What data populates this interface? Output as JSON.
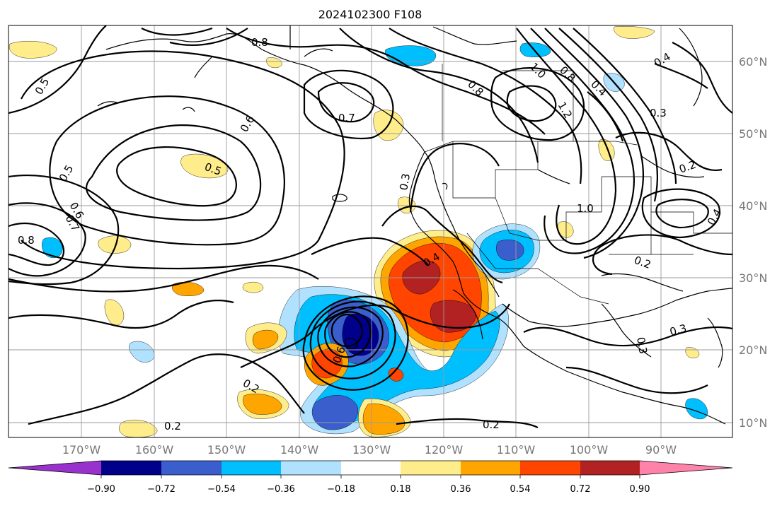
{
  "title": "2024102300 F108",
  "colors": {
    "neg_090": "#9932cc",
    "neg_072": "#00008b",
    "neg_054": "#3a5fcd",
    "neg_036": "#00bfff",
    "neg_018": "#b0e2ff",
    "neutral": "#ffffff",
    "pos_018": "#ffec8b",
    "pos_036": "#ffa500",
    "pos_054": "#ff4500",
    "pos_072": "#b22222",
    "pos_090": "#ff82ab"
  },
  "map": {
    "lon_labels": [
      "170°W",
      "160°W",
      "150°W",
      "140°W",
      "130°W",
      "120°W",
      "110°W",
      "100°W",
      "90°W"
    ],
    "lat_labels": [
      "60°N",
      "50°N",
      "40°N",
      "30°N",
      "20°N",
      "10°N"
    ],
    "contour_labels": [
      "0.8",
      "0.5",
      "0.6",
      "0.7",
      "0.5",
      "0.6",
      "0.7",
      "0.8",
      "0.3",
      "0.8",
      "1.0",
      "0.8",
      "1.2",
      "0.4",
      "0.4",
      "0.3",
      "0.2",
      "1.0",
      "0.4",
      "0.2",
      "0.3",
      "0.3",
      "0.2",
      "0.2",
      "0.2",
      "0.6",
      "0.5",
      "0.4"
    ]
  },
  "colorbar": {
    "tick_labels": [
      "−0.90",
      "−0.72",
      "−0.54",
      "−0.36",
      "−0.18",
      "0.18",
      "0.36",
      "0.54",
      "0.72",
      "0.90"
    ]
  }
}
